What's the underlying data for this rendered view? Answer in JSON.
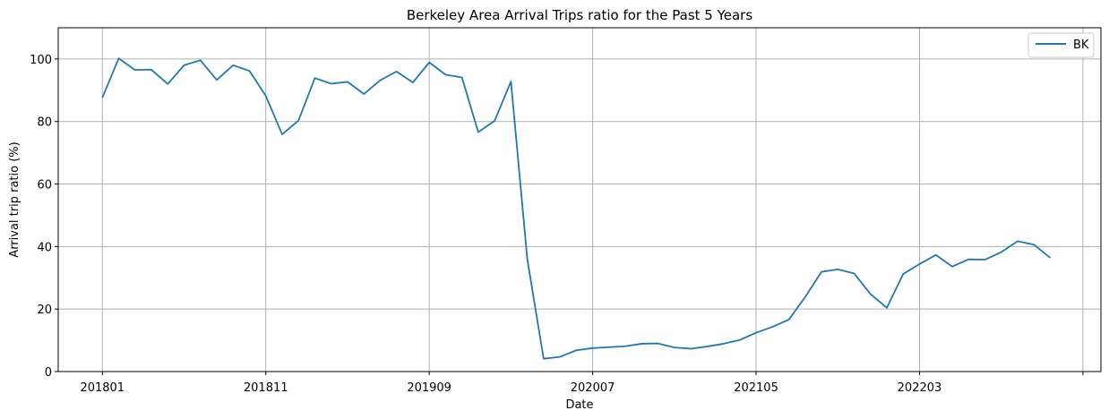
{
  "chart_data": {
    "type": "line",
    "title": "Berkeley Area Arrival Trips ratio for the Past 5 Years",
    "xlabel": "Date",
    "ylabel": "Arrival trip ratio (%)",
    "ylim": [
      0,
      110
    ],
    "yticks": [
      0,
      20,
      40,
      60,
      80,
      100
    ],
    "x_tick_labels": [
      "201801",
      "201811",
      "201909",
      "202007",
      "202105",
      "202203",
      ""
    ],
    "x_tick_positions": [
      0,
      10,
      20,
      30,
      40,
      50,
      60
    ],
    "xlim": [
      -2.7,
      61.1
    ],
    "grid": true,
    "legend_position": "top-right",
    "series": [
      {
        "name": "BK",
        "color": "#1f77b4",
        "x": [
          0,
          1,
          2,
          3,
          4,
          5,
          6,
          7,
          8,
          9,
          10,
          11,
          12,
          13,
          14,
          15,
          16,
          17,
          18,
          19,
          20,
          21,
          22,
          23,
          24,
          25,
          26,
          27,
          28,
          29,
          30,
          31,
          32,
          33,
          34,
          35,
          36,
          37,
          38,
          39,
          40,
          41,
          42,
          43,
          44,
          45,
          46,
          47,
          48,
          49,
          50,
          51,
          52,
          53,
          54,
          55,
          56,
          57,
          58
        ],
        "values": [
          87.6,
          100.2,
          96.5,
          96.6,
          92.0,
          98.0,
          99.6,
          93.3,
          98.0,
          96.2,
          88.2,
          75.9,
          80.3,
          93.9,
          92.1,
          92.7,
          88.8,
          93.2,
          96.0,
          92.5,
          98.9,
          95.0,
          94.1,
          76.6,
          80.2,
          92.8,
          36.0,
          4.1,
          4.7,
          6.8,
          7.5,
          7.8,
          8.1,
          8.9,
          9.0,
          7.7,
          7.3,
          8.0,
          8.9,
          10.1,
          12.4,
          14.3,
          16.6,
          23.8,
          31.9,
          32.7,
          31.4,
          24.8,
          20.4,
          31.2,
          34.4,
          37.3,
          33.6,
          35.9,
          35.8,
          38.2,
          41.7,
          40.6,
          36.4
        ]
      }
    ]
  }
}
